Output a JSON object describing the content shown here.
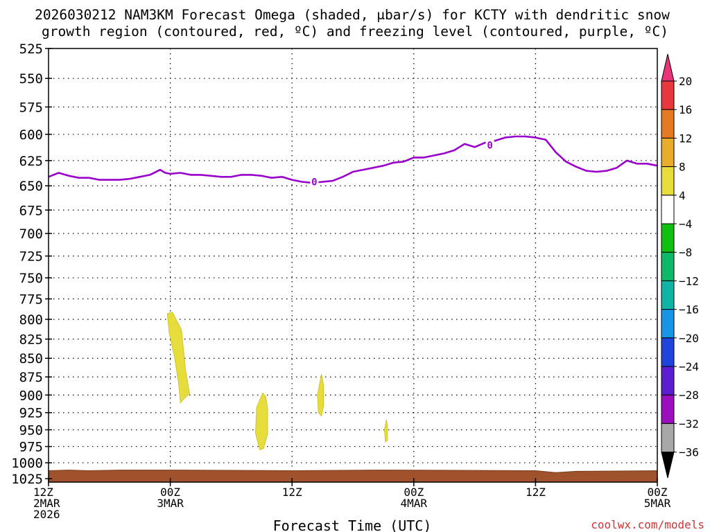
{
  "chart_data": {
    "type": "area",
    "title_line1": "2026030212 NAM3KM Forecast Omega (shaded, μbar/s) for KCTY with dendritic snow",
    "title_line2": "growth region (contoured, red, ºC) and freezing level (contoured, purple, ºC)",
    "xlabel": "Forecast Time (UTC)",
    "credit": "coolwx.com/models",
    "x_range_hours": [
      0,
      60
    ],
    "y_levels_hpa": [
      525,
      550,
      575,
      600,
      625,
      650,
      675,
      700,
      725,
      750,
      775,
      800,
      825,
      850,
      875,
      900,
      925,
      950,
      975,
      1000,
      1025
    ],
    "y_log_scale": true,
    "x_ticks": [
      {
        "hour": 0,
        "lines": [
          "12Z",
          "2MAR",
          "2026"
        ]
      },
      {
        "hour": 12,
        "lines": [
          "00Z",
          "3MAR"
        ]
      },
      {
        "hour": 24,
        "lines": [
          "12Z"
        ]
      },
      {
        "hour": 36,
        "lines": [
          "00Z",
          "4MAR"
        ]
      },
      {
        "hour": 48,
        "lines": [
          "12Z"
        ]
      },
      {
        "hour": 60,
        "lines": [
          "00Z",
          "5MAR"
        ]
      }
    ],
    "grid": true,
    "colors": {
      "freezing_level": "#9900cc",
      "omega_fill": "#e6dc3c",
      "ground": "#a0522d"
    },
    "freezing_level": {
      "label": "0",
      "label_positions": [
        {
          "hour": 26.2,
          "hpa": 646
        },
        {
          "hour": 43.5,
          "hpa": 610
        }
      ],
      "points": [
        [
          0,
          641
        ],
        [
          1,
          637
        ],
        [
          2,
          640
        ],
        [
          3,
          642
        ],
        [
          4,
          642
        ],
        [
          5,
          644
        ],
        [
          6,
          644
        ],
        [
          7,
          644
        ],
        [
          8,
          643
        ],
        [
          9,
          641
        ],
        [
          10,
          639
        ],
        [
          11,
          634
        ],
        [
          11.5,
          637
        ],
        [
          12,
          638
        ],
        [
          13,
          637
        ],
        [
          14,
          639
        ],
        [
          15,
          639
        ],
        [
          16,
          640
        ],
        [
          17,
          641
        ],
        [
          18,
          641
        ],
        [
          19,
          639
        ],
        [
          20,
          639
        ],
        [
          21,
          640
        ],
        [
          22,
          642
        ],
        [
          23,
          641
        ],
        [
          24,
          644
        ],
        [
          25,
          646
        ],
        [
          26,
          647
        ],
        [
          27,
          646
        ],
        [
          28,
          645
        ],
        [
          29,
          641
        ],
        [
          30,
          636
        ],
        [
          31,
          634
        ],
        [
          32,
          632
        ],
        [
          33,
          630
        ],
        [
          34,
          627
        ],
        [
          35,
          626
        ],
        [
          36,
          622
        ],
        [
          37,
          622
        ],
        [
          38,
          620
        ],
        [
          39,
          618
        ],
        [
          40,
          615
        ],
        [
          41,
          609
        ],
        [
          42,
          612
        ],
        [
          43,
          608
        ],
        [
          44,
          606
        ],
        [
          45,
          603
        ],
        [
          46,
          602
        ],
        [
          47,
          602
        ],
        [
          48,
          603
        ],
        [
          49,
          605
        ],
        [
          50,
          617
        ],
        [
          51,
          626
        ],
        [
          52,
          631
        ],
        [
          53,
          635
        ],
        [
          54,
          636
        ],
        [
          55,
          635
        ],
        [
          56,
          632
        ],
        [
          57,
          625
        ],
        [
          58,
          628
        ],
        [
          59,
          628
        ],
        [
          60,
          630
        ]
      ]
    },
    "omega_regions": [
      {
        "value_range": "4 to 8",
        "points": [
          [
            11.7,
            793
          ],
          [
            12.2,
            791
          ],
          [
            13.1,
            813
          ],
          [
            13.5,
            865
          ],
          [
            13.9,
            898
          ],
          [
            13.3,
            906
          ],
          [
            13.0,
            911
          ],
          [
            12.8,
            882
          ],
          [
            12.4,
            848
          ],
          [
            11.9,
            818
          ]
        ]
      },
      {
        "value_range": "4 to 8",
        "points": [
          [
            21.1,
            897
          ],
          [
            21.4,
            902
          ],
          [
            21.6,
            920
          ],
          [
            21.6,
            956
          ],
          [
            21.2,
            978
          ],
          [
            20.8,
            980
          ],
          [
            20.4,
            955
          ],
          [
            20.5,
            918
          ]
        ]
      },
      {
        "value_range": "4 to 8",
        "points": [
          [
            26.9,
            871
          ],
          [
            27.1,
            886
          ],
          [
            27.1,
            916
          ],
          [
            26.9,
            930
          ],
          [
            26.6,
            925
          ],
          [
            26.5,
            900
          ]
        ]
      },
      {
        "value_range": "4 to 8",
        "points": [
          [
            33.3,
            935
          ],
          [
            33.4,
            945
          ],
          [
            33.4,
            966
          ],
          [
            33.2,
            968
          ],
          [
            33.1,
            950
          ]
        ]
      }
    ],
    "ground": {
      "top_hpa": 1020,
      "points": [
        [
          0,
          1020
        ],
        [
          2,
          1019
        ],
        [
          4,
          1020
        ],
        [
          7,
          1019
        ],
        [
          12,
          1019
        ],
        [
          24,
          1020
        ],
        [
          32,
          1019
        ],
        [
          34,
          1019
        ],
        [
          48,
          1020
        ],
        [
          50,
          1023
        ],
        [
          52,
          1021
        ],
        [
          60,
          1020
        ]
      ]
    },
    "colorbar": {
      "labels": [
        "20",
        "16",
        "12",
        "8",
        "4",
        "−4",
        "−8",
        "−12",
        "−16",
        "−20",
        "−24",
        "−28",
        "−32",
        "−36"
      ],
      "colors": [
        "#e9347a",
        "#e8373d",
        "#e67a23",
        "#e6ac2a",
        "#e6dc3c",
        "#ffffff",
        "#10c010",
        "#0db866",
        "#10b4a4",
        "#1795e6",
        "#1e44dc",
        "#5b1ed0",
        "#9c0fc0",
        "#a8a8a8",
        "#000000"
      ]
    }
  }
}
